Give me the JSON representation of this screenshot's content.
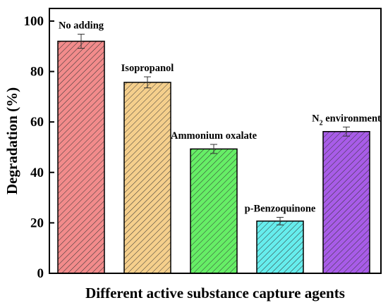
{
  "chart_data": {
    "type": "bar",
    "categories": [
      "No adding",
      "Isopropanol",
      "Ammonium oxalate",
      "p-Benzoquinone",
      "N2 environment"
    ],
    "category_display": [
      {
        "main": "No adding",
        "sub": "",
        "rest": ""
      },
      {
        "main": "Isopropanol",
        "sub": "",
        "rest": ""
      },
      {
        "main": "Ammonium oxalate",
        "sub": "",
        "rest": ""
      },
      {
        "main": "p-Benzoquinone",
        "sub": "",
        "rest": ""
      },
      {
        "main": "N",
        "sub": "2",
        "rest": " environment"
      }
    ],
    "values": [
      92,
      75.7,
      49.3,
      20.7,
      56.2
    ],
    "errors": [
      2.8,
      2.2,
      1.8,
      1.5,
      1.8
    ],
    "colors": [
      "#f28b8b",
      "#f5cf8c",
      "#66ee66",
      "#66eded",
      "#a85ce8"
    ],
    "xlabel": "Different active substance capture agents",
    "ylabel": "Degradation (%)",
    "ylim": [
      0,
      105
    ],
    "yticks": [
      0,
      20,
      40,
      60,
      80,
      100
    ],
    "hatch": "diagonal",
    "grid": false
  }
}
